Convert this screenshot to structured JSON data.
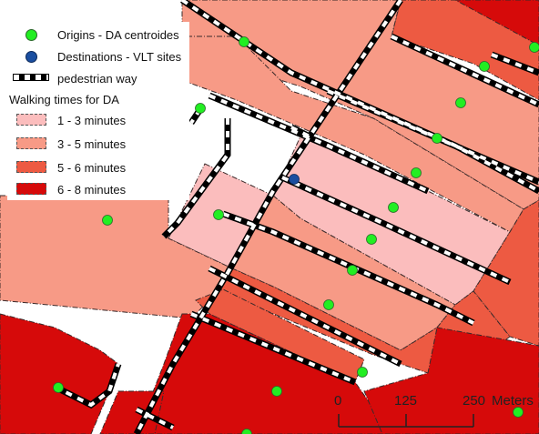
{
  "legend": {
    "origins_label": "Origins - DA centroides",
    "destinations_label": "Destinations - VLT sites",
    "pedestrian_label": "pedestrian way",
    "title": "Walking times for DA",
    "classes": [
      {
        "label": "1 - 3 minutes",
        "color": "#fbbdbd"
      },
      {
        "label": "3 - 5 minutes",
        "color": "#f79a86"
      },
      {
        "label": "5 - 6 minutes",
        "color": "#ed5a42"
      },
      {
        "label": "6 - 8 minutes",
        "color": "#d60a0a"
      }
    ],
    "origin_color": "#22ee22",
    "destination_color": "#1a4ea0"
  },
  "scale": {
    "ticks": [
      "0",
      "125",
      "250"
    ],
    "unit": "Meters"
  }
}
